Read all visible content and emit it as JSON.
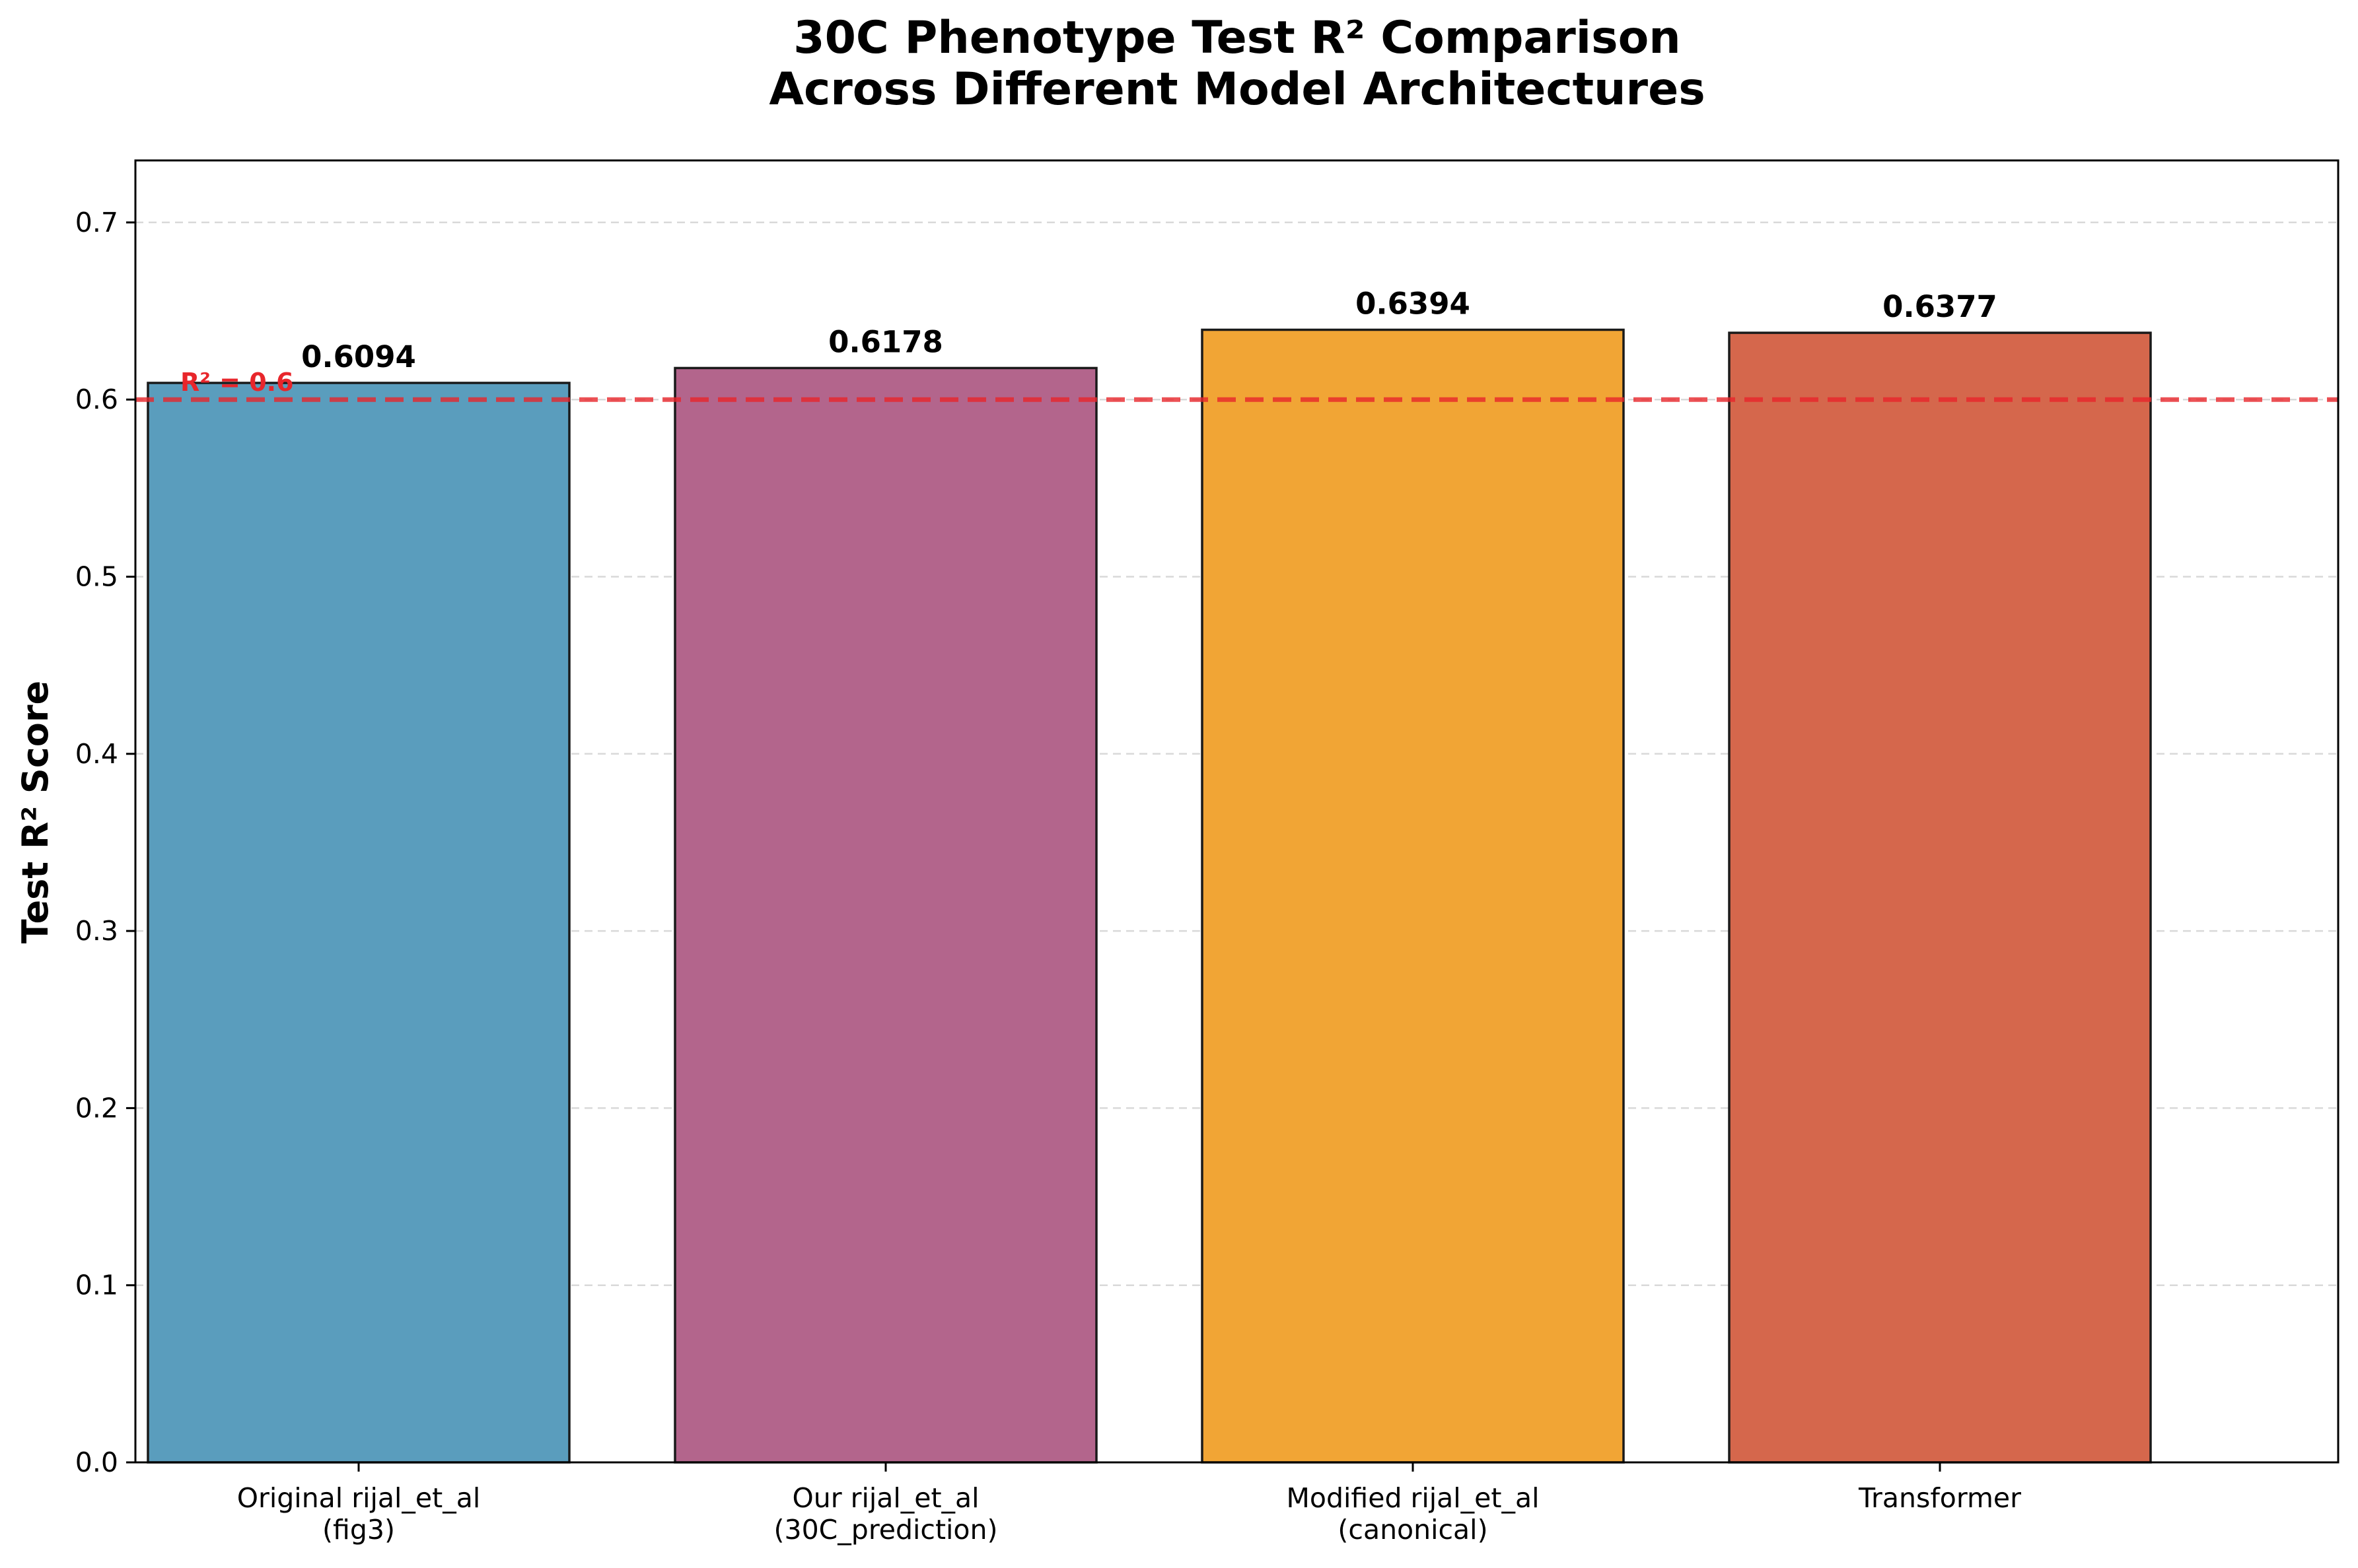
{
  "chart_data": {
    "type": "bar",
    "title_lines": [
      "30C Phenotype Test R² Comparison",
      "Across Different Model Architectures"
    ],
    "ylabel": "Test R² Score",
    "xlabel": "",
    "categories": [
      [
        "Original rijal_et_al",
        "(fig3)"
      ],
      [
        "Our rijal_et_al",
        "(30C_prediction)"
      ],
      [
        "Modified rijal_et_al",
        "(canonical)"
      ],
      [
        "Transformer"
      ]
    ],
    "values": [
      0.6094,
      0.6178,
      0.6394,
      0.6377
    ],
    "value_labels": [
      "0.6094",
      "0.6178",
      "0.6394",
      "0.6377"
    ],
    "colors": [
      "#5a9dbd",
      "#b3658c",
      "#f1a535",
      "#d5674c"
    ],
    "ylim": [
      0,
      0.735
    ],
    "yticks": [
      0.0,
      0.1,
      0.2,
      0.3,
      0.4,
      0.5,
      0.6,
      0.7
    ],
    "ytick_labels": [
      "0.0",
      "0.1",
      "0.2",
      "0.3",
      "0.4",
      "0.5",
      "0.6",
      "0.7"
    ],
    "grid": "y, dashed",
    "reference_line": {
      "value": 0.6,
      "label": "R² = 0.6",
      "color": "#e8262b"
    }
  }
}
